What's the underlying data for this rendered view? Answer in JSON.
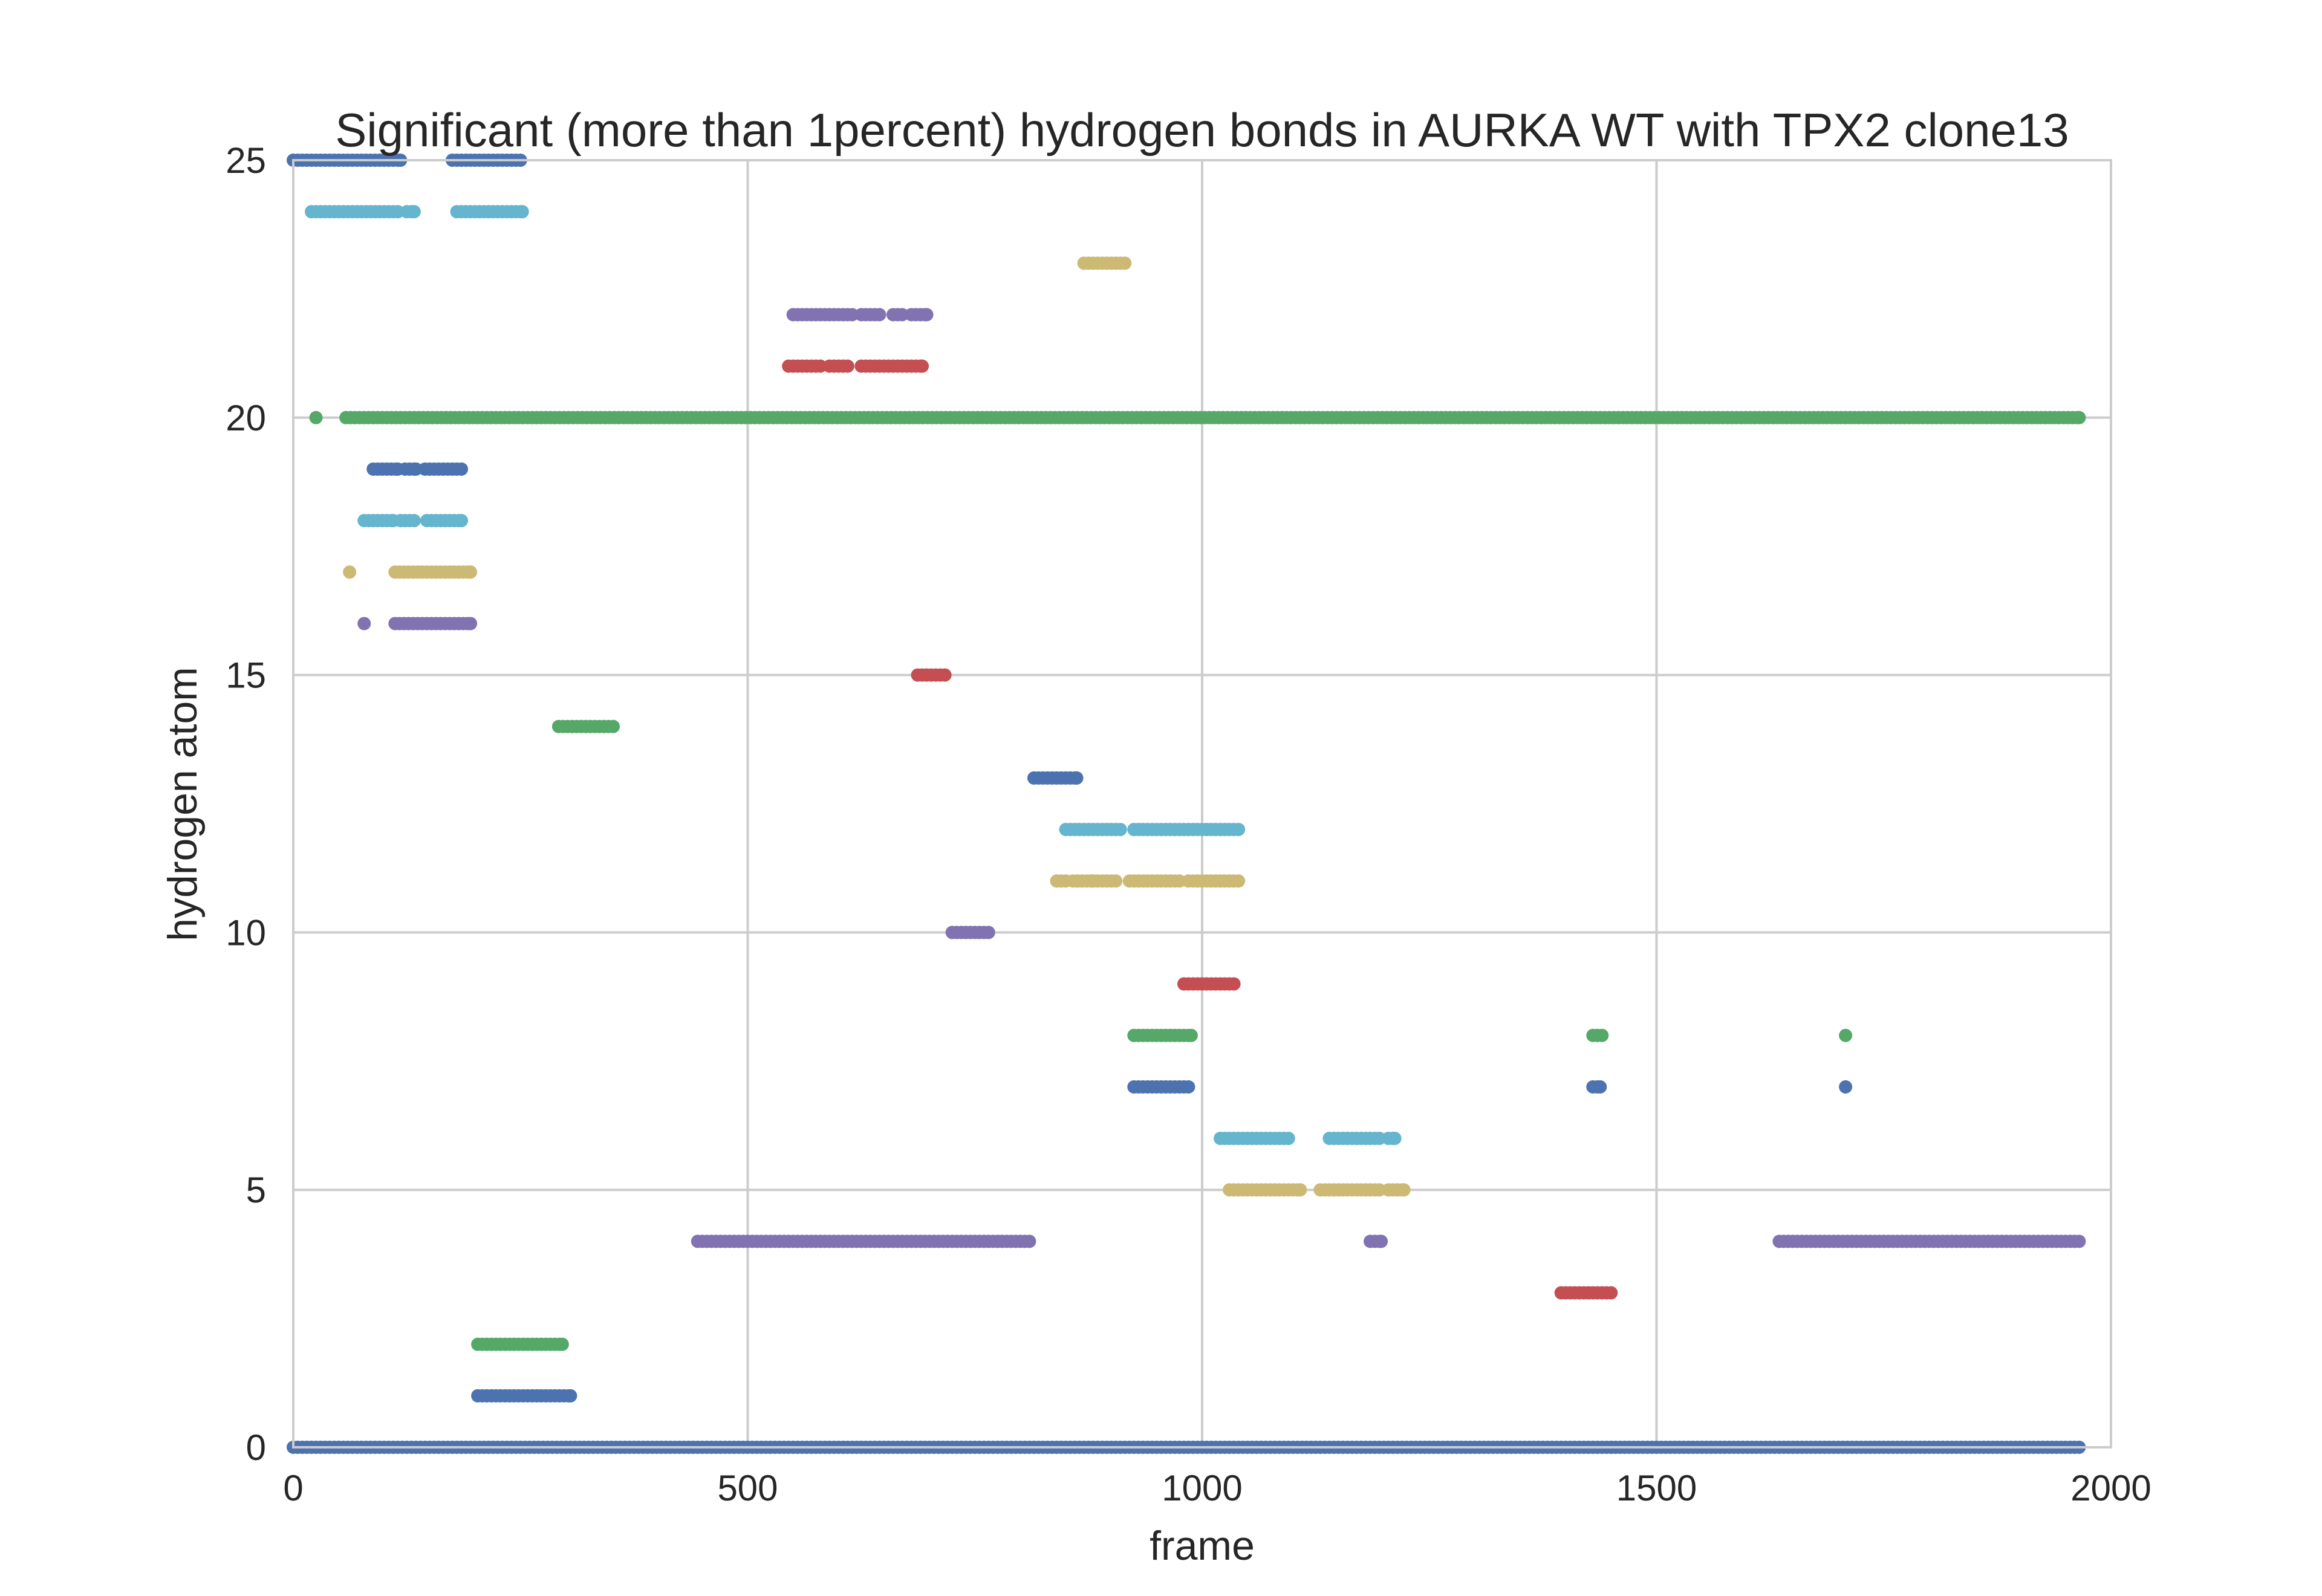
{
  "chart_data": {
    "type": "scatter",
    "title": "Significant (more than 1percent) hydrogen bonds in AURKA WT with TPX2 clone13",
    "xlabel": "frame",
    "ylabel": "hydrogen atom",
    "xlim": [
      0,
      2000
    ],
    "ylim": [
      0,
      25
    ],
    "xticks": [
      0,
      500,
      1000,
      1500,
      2000
    ],
    "yticks": [
      0,
      5,
      10,
      15,
      20,
      25
    ],
    "x_tick_labels": [
      "0",
      "500",
      "1000",
      "1500",
      "2000"
    ],
    "y_tick_labels": [
      "0",
      "5",
      "10",
      "15",
      "20",
      "25"
    ],
    "grid": true,
    "background": "#ffffff",
    "grid_color": "#cccccc",
    "palette": [
      "#4c72b0",
      "#55a868",
      "#c44e52",
      "#8172b2",
      "#ccb974",
      "#64b5cd"
    ],
    "series": [
      {
        "y": 0,
        "color": "#4c72b0",
        "segments": [
          [
            0,
            1965
          ]
        ]
      },
      {
        "y": 1,
        "color": "#4c72b0",
        "segments": [
          [
            203,
            305
          ]
        ]
      },
      {
        "y": 2,
        "color": "#55a868",
        "segments": [
          [
            203,
            296
          ]
        ]
      },
      {
        "y": 3,
        "color": "#c44e52",
        "segments": [
          [
            1395,
            1450
          ]
        ]
      },
      {
        "y": 4,
        "color": "#8172b2",
        "segments": [
          [
            445,
            810
          ],
          [
            1185,
            1197
          ],
          [
            1635,
            1965
          ]
        ]
      },
      {
        "y": 5,
        "color": "#ccb974",
        "segments": [
          [
            1030,
            1108
          ],
          [
            1130,
            1195
          ],
          [
            1205,
            1222
          ]
        ]
      },
      {
        "y": 6,
        "color": "#64b5cd",
        "segments": [
          [
            1020,
            1095
          ],
          [
            1140,
            1195
          ],
          [
            1205,
            1212
          ]
        ]
      },
      {
        "y": 7,
        "color": "#4c72b0",
        "segments": [
          [
            925,
            985
          ],
          [
            1430,
            1438
          ],
          [
            1708,
            1708
          ]
        ]
      },
      {
        "y": 8,
        "color": "#55a868",
        "segments": [
          [
            925,
            988
          ],
          [
            1430,
            1440
          ],
          [
            1708,
            1708
          ]
        ]
      },
      {
        "y": 9,
        "color": "#c44e52",
        "segments": [
          [
            980,
            1035
          ]
        ]
      },
      {
        "y": 10,
        "color": "#8172b2",
        "segments": [
          [
            725,
            765
          ]
        ]
      },
      {
        "y": 11,
        "color": "#ccb974",
        "segments": [
          [
            840,
            850
          ],
          [
            858,
            880
          ],
          [
            880,
            905
          ],
          [
            920,
            975
          ],
          [
            985,
            1040
          ]
        ]
      },
      {
        "y": 12,
        "color": "#64b5cd",
        "segments": [
          [
            850,
            910
          ],
          [
            925,
            1000
          ],
          [
            1005,
            1040
          ]
        ]
      },
      {
        "y": 13,
        "color": "#4c72b0",
        "segments": [
          [
            815,
            862
          ]
        ]
      },
      {
        "y": 14,
        "color": "#55a868",
        "segments": [
          [
            292,
            352
          ]
        ]
      },
      {
        "y": 15,
        "color": "#c44e52",
        "segments": [
          [
            687,
            717
          ]
        ]
      },
      {
        "y": 16,
        "color": "#8172b2",
        "segments": [
          [
            78,
            78
          ],
          [
            112,
            195
          ]
        ]
      },
      {
        "y": 17,
        "color": "#ccb974",
        "segments": [
          [
            62,
            62
          ],
          [
            112,
            195
          ]
        ]
      },
      {
        "y": 18,
        "color": "#64b5cd",
        "segments": [
          [
            78,
            110
          ],
          [
            118,
            133
          ],
          [
            147,
            185
          ]
        ]
      },
      {
        "y": 19,
        "color": "#4c72b0",
        "segments": [
          [
            88,
            115
          ],
          [
            123,
            135
          ],
          [
            145,
            185
          ]
        ]
      },
      {
        "y": 20,
        "color": "#55a868",
        "segments": [
          [
            25,
            25
          ],
          [
            58,
            1965
          ]
        ]
      },
      {
        "y": 21,
        "color": "#c44e52",
        "segments": [
          [
            545,
            580
          ],
          [
            590,
            610
          ],
          [
            625,
            660
          ],
          [
            665,
            692
          ]
        ]
      },
      {
        "y": 22,
        "color": "#8172b2",
        "segments": [
          [
            550,
            600
          ],
          [
            605,
            615
          ],
          [
            625,
            645
          ],
          [
            660,
            670
          ],
          [
            680,
            697
          ]
        ]
      },
      {
        "y": 23,
        "color": "#ccb974",
        "segments": [
          [
            870,
            915
          ]
        ]
      },
      {
        "y": 24,
        "color": "#64b5cd",
        "segments": [
          [
            20,
            115
          ],
          [
            125,
            133
          ],
          [
            180,
            252
          ]
        ]
      },
      {
        "y": 25,
        "color": "#4c72b0",
        "segments": [
          [
            0,
            40
          ],
          [
            45,
            118
          ],
          [
            175,
            250
          ]
        ]
      }
    ]
  }
}
